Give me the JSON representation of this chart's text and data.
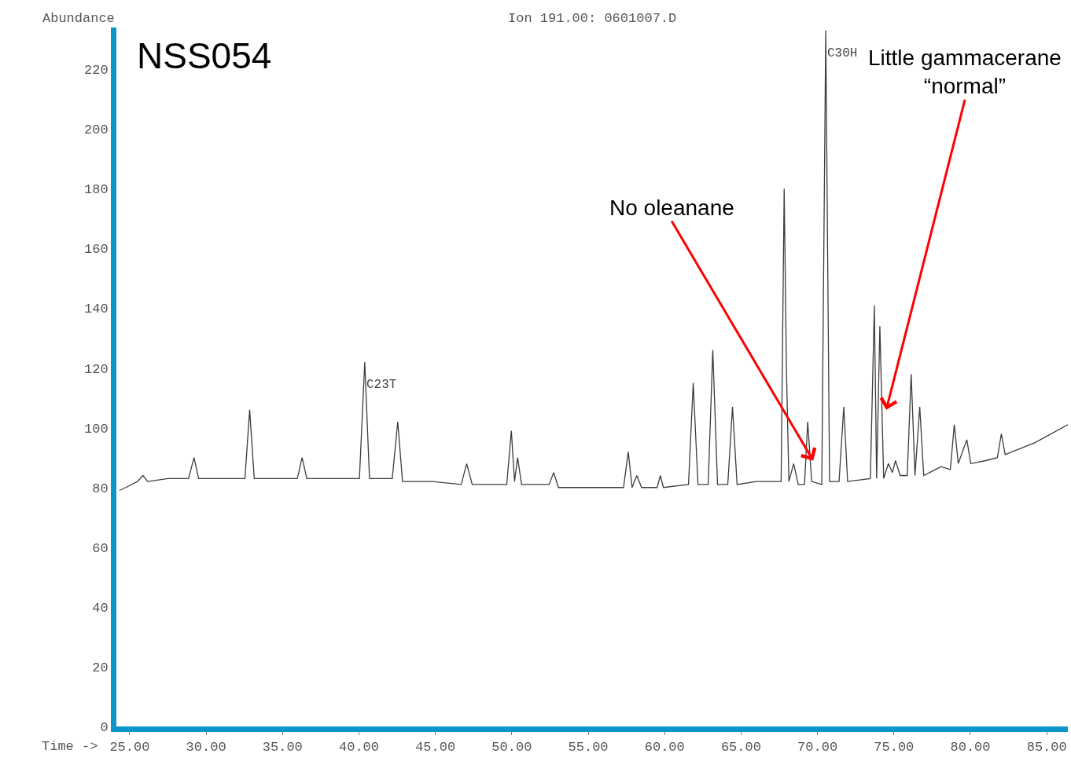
{
  "chart_data": {
    "type": "line",
    "title": "NSS054",
    "subtitle": "Ion 191.00: 0601007.D",
    "xlabel": "Time ->",
    "ylabel": "Abundance",
    "x": [
      24.33,
      24.74,
      25.51,
      25.87,
      26.18,
      27.5,
      28.85,
      29.21,
      29.51,
      31.0,
      32.54,
      32.85,
      33.15,
      34.5,
      35.97,
      36.28,
      36.59,
      38.3,
      40.03,
      40.38,
      40.69,
      42.18,
      42.54,
      42.85,
      44.8,
      46.69,
      47.05,
      47.41,
      48.5,
      49.67,
      49.97,
      50.18,
      50.38,
      50.64,
      52.44,
      52.74,
      53.05,
      55.2,
      57.31,
      57.62,
      57.87,
      58.18,
      58.49,
      59.51,
      59.72,
      59.92,
      61.56,
      61.87,
      62.18,
      62.85,
      63.15,
      63.46,
      64.13,
      64.44,
      64.74,
      66.0,
      67.31,
      67.62,
      67.82,
      67.97,
      68.13,
      68.44,
      68.74,
      69.15,
      69.36,
      69.62,
      70.28,
      70.54,
      70.79,
      71.41,
      71.72,
      71.97,
      73.46,
      73.72,
      73.87,
      74.08,
      74.33,
      74.64,
      74.9,
      75.1,
      75.41,
      75.87,
      76.13,
      76.38,
      76.69,
      76.95,
      77.72,
      78.08,
      78.69,
      78.95,
      79.21,
      79.77,
      80.03,
      81.0,
      81.77,
      82.03,
      82.28,
      84.23,
      86.38
    ],
    "series": [
      {
        "color": "#3c3c3c",
        "values": [
          79,
          80,
          82,
          84,
          82,
          83,
          83,
          90,
          83,
          83,
          83,
          106,
          83,
          83,
          83,
          90,
          83,
          83,
          83,
          122,
          83,
          83,
          102,
          82,
          82,
          81,
          88,
          81,
          81,
          81,
          99,
          82,
          90,
          81,
          81,
          85,
          80,
          80,
          80,
          92,
          80,
          84,
          80,
          80,
          84,
          80,
          81,
          115,
          81,
          81,
          126,
          81,
          81,
          107,
          81,
          82,
          82,
          82,
          180,
          119,
          82,
          88,
          81,
          81,
          102,
          82,
          81,
          233,
          82,
          82,
          107,
          82,
          83,
          141,
          83,
          134,
          83,
          88,
          85,
          89,
          84,
          84,
          118,
          84,
          107,
          84,
          86,
          87,
          86,
          101,
          88,
          96,
          88,
          89,
          90,
          98,
          91,
          95,
          101
        ]
      }
    ],
    "annotations": [
      {
        "text": "C23T",
        "x": 40.38,
        "y": 122
      },
      {
        "text": "C30H",
        "x": 70.54,
        "y": 233
      },
      {
        "text": "No oleanane",
        "x": 69.72,
        "y": 89
      },
      {
        "text": "Little gammacerane\n“normal”",
        "x": 74.5,
        "y": 106
      }
    ],
    "xlim": [
      24.13,
      86.38
    ],
    "ylim": [
      0,
      234
    ],
    "xticks": [
      {
        "value": 25,
        "label": "25.00"
      },
      {
        "value": 30,
        "label": "30.00"
      },
      {
        "value": 35,
        "label": "35.00"
      },
      {
        "value": 40,
        "label": "40.00"
      },
      {
        "value": 45,
        "label": "45.00"
      },
      {
        "value": 50,
        "label": "50.00"
      },
      {
        "value": 55,
        "label": "55.00"
      },
      {
        "value": 60,
        "label": "60.00"
      },
      {
        "value": 65,
        "label": "65.00"
      },
      {
        "value": 70,
        "label": "70.00"
      },
      {
        "value": 75,
        "label": "75.00"
      },
      {
        "value": 80,
        "label": "80.00"
      },
      {
        "value": 85,
        "label": "85.00"
      }
    ],
    "yticks": [
      0,
      20,
      40,
      60,
      80,
      100,
      120,
      140,
      160,
      180,
      200,
      220
    ],
    "marker": "none",
    "line_style": "solid"
  }
}
